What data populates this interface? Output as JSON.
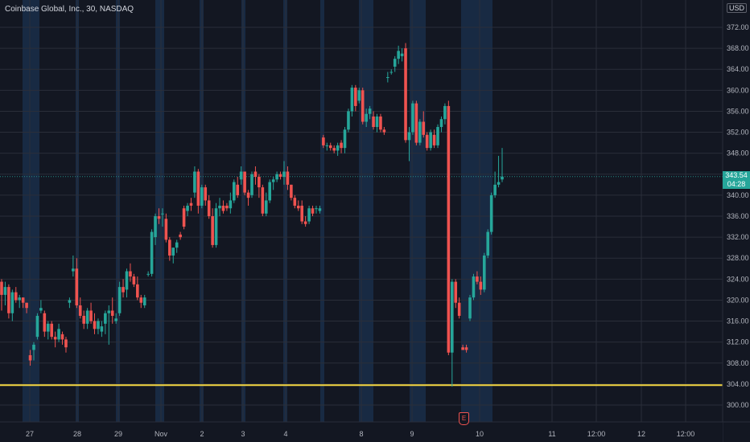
{
  "header": {
    "symbol_title": "Coinbase Global, Inc., 30, NASDAQ",
    "currency_badge": "USD"
  },
  "last_price_badge": {
    "price": "343.54",
    "countdown": "04:28"
  },
  "earnings_marker": {
    "label": "E"
  },
  "colors": {
    "background": "#131722",
    "up": "#26a69a",
    "down": "#ef5350",
    "session_band": "#1e3a5f",
    "hline": "#f5d742"
  },
  "chart_data": {
    "type": "candlestick",
    "title": "Coinbase Global, Inc., 30, NASDAQ",
    "ylim": [
      296,
      376
    ],
    "yticks": [
      300,
      304,
      308,
      312,
      316,
      320,
      324,
      328,
      332,
      336,
      340,
      344,
      348,
      352,
      356,
      360,
      364,
      368,
      372
    ],
    "ytick_labels": [
      "300.00",
      "304.00",
      "308.00",
      "312.00",
      "316.00",
      "320.00",
      "324.00",
      "328.00",
      "332.00",
      "336.00",
      "340.00",
      "344.00",
      "348.00",
      "352.00",
      "356.00",
      "360.00",
      "364.00",
      "368.00",
      "372.00"
    ],
    "xtick_labels": [
      "27",
      "28",
      "29",
      "Nov",
      "2",
      "3",
      "4",
      "8",
      "9",
      "10",
      "11",
      "12:00",
      "12",
      "12:00"
    ],
    "horizontal_line": 303.8,
    "last_price": 343.54,
    "grid": true,
    "candles": [
      [
        323.5,
        324.0,
        318.0,
        321.0
      ],
      [
        321.0,
        323.5,
        319.0,
        322.5
      ],
      [
        322.5,
        323.0,
        316.5,
        317.5
      ],
      [
        317.5,
        322.0,
        316.0,
        321.5
      ],
      [
        321.5,
        322.5,
        319.5,
        320.0
      ],
      [
        320.0,
        321.0,
        318.5,
        320.5
      ],
      [
        320.5,
        320.5,
        318.5,
        319.5
      ],
      [
        319.5,
        319.5,
        317.5,
        318.5
      ],
      [
        309.5,
        310.5,
        307.5,
        308.5
      ],
      [
        310.5,
        312.0,
        308.5,
        311.5
      ],
      [
        313.0,
        317.5,
        312.5,
        317.0
      ],
      [
        318.0,
        320.0,
        317.5,
        318.5
      ],
      [
        317.5,
        318.0,
        313.0,
        314.0
      ],
      [
        314.0,
        316.0,
        312.5,
        315.5
      ],
      [
        315.5,
        316.0,
        312.5,
        313.0
      ],
      [
        313.0,
        314.0,
        311.0,
        312.5
      ],
      [
        312.5,
        315.5,
        312.0,
        314.5
      ],
      [
        313.5,
        314.0,
        311.5,
        312.5
      ],
      [
        312.5,
        313.0,
        310.0,
        311.0
      ],
      [
        319.5,
        320.5,
        318.5,
        320.0
      ],
      [
        325.5,
        328.5,
        324.5,
        326.0
      ],
      [
        326.0,
        328.0,
        318.5,
        319.0
      ],
      [
        319.0,
        320.5,
        316.5,
        317.0
      ],
      [
        317.0,
        318.0,
        314.5,
        315.5
      ],
      [
        315.5,
        318.5,
        314.5,
        318.0
      ],
      [
        318.0,
        319.5,
        315.5,
        316.0
      ],
      [
        316.0,
        317.5,
        313.5,
        314.5
      ],
      [
        314.5,
        316.5,
        313.5,
        316.0
      ],
      [
        314.0,
        316.0,
        313.0,
        315.0
      ],
      [
        315.5,
        318.0,
        313.5,
        317.5
      ],
      [
        317.5,
        319.0,
        311.5,
        318.0
      ],
      [
        318.0,
        320.5,
        315.5,
        317.0
      ],
      [
        316.0,
        317.5,
        315.5,
        316.5
      ],
      [
        317.5,
        323.5,
        317.0,
        322.5
      ],
      [
        322.5,
        324.0,
        320.5,
        321.5
      ],
      [
        322.0,
        326.0,
        320.5,
        325.5
      ],
      [
        325.5,
        327.0,
        323.5,
        324.5
      ],
      [
        324.5,
        325.0,
        322.5,
        323.0
      ],
      [
        323.0,
        324.5,
        320.0,
        320.5
      ],
      [
        320.5,
        321.0,
        318.5,
        319.5
      ],
      [
        319.0,
        321.0,
        318.5,
        320.5
      ],
      [
        325.0,
        325.5,
        324.5,
        325.0
      ],
      [
        325.0,
        333.5,
        324.5,
        333.0
      ],
      [
        332.0,
        336.5,
        330.5,
        336.0
      ],
      [
        336.0,
        337.5,
        334.5,
        335.5
      ],
      [
        336.5,
        337.5,
        334.0,
        336.5
      ],
      [
        335.5,
        336.5,
        331.0,
        331.5
      ],
      [
        331.5,
        332.0,
        327.5,
        328.5
      ],
      [
        328.5,
        330.0,
        327.0,
        330.0
      ],
      [
        330.0,
        331.5,
        329.0,
        331.0
      ],
      [
        332.5,
        333.0,
        331.5,
        332.0
      ],
      [
        337.5,
        338.0,
        333.5,
        334.0
      ],
      [
        337.0,
        338.5,
        336.0,
        338.0
      ],
      [
        338.5,
        339.5,
        337.0,
        338.0
      ],
      [
        340.5,
        345.5,
        339.5,
        344.5
      ],
      [
        344.5,
        345.0,
        336.5,
        338.0
      ],
      [
        338.0,
        342.0,
        337.5,
        341.5
      ],
      [
        341.5,
        342.0,
        338.0,
        339.0
      ],
      [
        339.0,
        340.0,
        335.5,
        336.0
      ],
      [
        336.0,
        337.5,
        330.0,
        330.5
      ],
      [
        330.5,
        338.5,
        330.0,
        337.5
      ],
      [
        337.5,
        339.5,
        336.0,
        338.0
      ],
      [
        338.0,
        339.0,
        336.5,
        337.0
      ],
      [
        338.0,
        338.5,
        337.0,
        337.5
      ],
      [
        337.5,
        340.5,
        336.5,
        339.0
      ],
      [
        339.0,
        343.0,
        338.5,
        342.5
      ],
      [
        342.0,
        343.5,
        339.5,
        340.0
      ],
      [
        343.0,
        345.5,
        342.0,
        344.5
      ],
      [
        344.5,
        344.5,
        340.0,
        340.5
      ],
      [
        340.5,
        341.0,
        338.0,
        339.5
      ],
      [
        340.0,
        344.5,
        339.5,
        344.0
      ],
      [
        344.5,
        345.5,
        342.0,
        343.5
      ],
      [
        343.5,
        344.0,
        339.5,
        341.5
      ],
      [
        341.5,
        342.0,
        336.0,
        336.5
      ],
      [
        336.5,
        340.5,
        336.0,
        339.0
      ],
      [
        339.0,
        343.0,
        338.5,
        342.5
      ],
      [
        342.5,
        343.5,
        341.0,
        343.0
      ],
      [
        343.0,
        344.5,
        342.5,
        344.0
      ],
      [
        344.0,
        344.5,
        343.0,
        343.5
      ],
      [
        343.5,
        346.5,
        342.0,
        344.5
      ],
      [
        344.5,
        345.5,
        341.0,
        342.0
      ],
      [
        342.0,
        342.0,
        339.0,
        339.5
      ],
      [
        339.5,
        340.0,
        337.5,
        338.0
      ],
      [
        338.0,
        339.0,
        337.0,
        337.5
      ],
      [
        338.0,
        339.0,
        334.5,
        335.0
      ],
      [
        335.0,
        336.0,
        334.0,
        334.5
      ],
      [
        335.0,
        338.0,
        334.5,
        337.5
      ],
      [
        337.5,
        338.0,
        336.0,
        336.5
      ],
      [
        337.5,
        338.0,
        336.5,
        337.5
      ],
      [
        337.0,
        338.0,
        336.5,
        337.5
      ],
      [
        351.0,
        351.5,
        349.0,
        349.5
      ],
      [
        349.5,
        350.0,
        348.5,
        349.5
      ],
      [
        349.5,
        350.0,
        348.5,
        349.0
      ],
      [
        349.0,
        349.5,
        348.0,
        348.5
      ],
      [
        348.5,
        350.0,
        347.5,
        349.5
      ],
      [
        350.0,
        350.5,
        348.0,
        349.0
      ],
      [
        349.0,
        353.0,
        348.0,
        352.5
      ],
      [
        352.5,
        356.5,
        352.0,
        356.0
      ],
      [
        356.0,
        361.0,
        355.0,
        360.5
      ],
      [
        360.5,
        361.0,
        356.0,
        357.0
      ],
      [
        358.0,
        360.5,
        357.5,
        360.0
      ],
      [
        360.0,
        360.5,
        353.5,
        354.0
      ],
      [
        354.0,
        356.5,
        353.0,
        355.5
      ],
      [
        355.5,
        357.0,
        354.5,
        356.5
      ],
      [
        355.0,
        356.0,
        352.5,
        353.0
      ],
      [
        353.0,
        355.5,
        352.0,
        355.0
      ],
      [
        355.0,
        355.5,
        352.0,
        352.5
      ],
      [
        352.5,
        353.0,
        351.5,
        352.0
      ],
      [
        362.5,
        363.5,
        361.5,
        362.5
      ],
      [
        363.5,
        364.0,
        363.0,
        363.5
      ],
      [
        364.5,
        366.5,
        363.5,
        366.0
      ],
      [
        366.0,
        368.5,
        365.0,
        367.5
      ],
      [
        366.5,
        368.0,
        365.5,
        367.0
      ],
      [
        368.0,
        369.0,
        350.0,
        350.5
      ],
      [
        350.5,
        353.0,
        346.5,
        352.0
      ],
      [
        352.0,
        358.0,
        351.5,
        357.5
      ],
      [
        357.5,
        358.0,
        349.5,
        350.0
      ],
      [
        350.0,
        354.5,
        349.5,
        354.0
      ],
      [
        354.0,
        356.0,
        351.0,
        351.5
      ],
      [
        351.5,
        352.0,
        348.5,
        349.0
      ],
      [
        349.0,
        352.5,
        348.5,
        352.0
      ],
      [
        351.5,
        352.5,
        349.0,
        349.5
      ],
      [
        349.5,
        353.5,
        349.0,
        353.0
      ],
      [
        353.0,
        355.0,
        352.0,
        354.5
      ],
      [
        354.5,
        357.5,
        353.5,
        357.0
      ],
      [
        357.0,
        358.0,
        309.5,
        310.0
      ],
      [
        310.0,
        324.0,
        303.5,
        323.5
      ],
      [
        323.5,
        324.0,
        318.5,
        319.5
      ],
      [
        319.5,
        320.5,
        316.5,
        317.0
      ],
      [
        311.0,
        311.5,
        310.5,
        310.5
      ],
      [
        311.0,
        311.5,
        310.0,
        310.5
      ],
      [
        316.5,
        321.0,
        316.0,
        320.5
      ],
      [
        320.5,
        325.0,
        320.0,
        324.5
      ],
      [
        324.5,
        325.5,
        323.0,
        323.5
      ],
      [
        323.5,
        324.5,
        321.0,
        322.0
      ],
      [
        322.0,
        329.0,
        321.5,
        328.5
      ],
      [
        328.5,
        333.5,
        328.0,
        333.0
      ],
      [
        333.0,
        340.5,
        332.5,
        340.0
      ],
      [
        340.0,
        344.5,
        339.5,
        342.0
      ],
      [
        342.0,
        347.5,
        341.5,
        342.5
      ],
      [
        343.0,
        349.0,
        342.5,
        343.54
      ]
    ]
  }
}
